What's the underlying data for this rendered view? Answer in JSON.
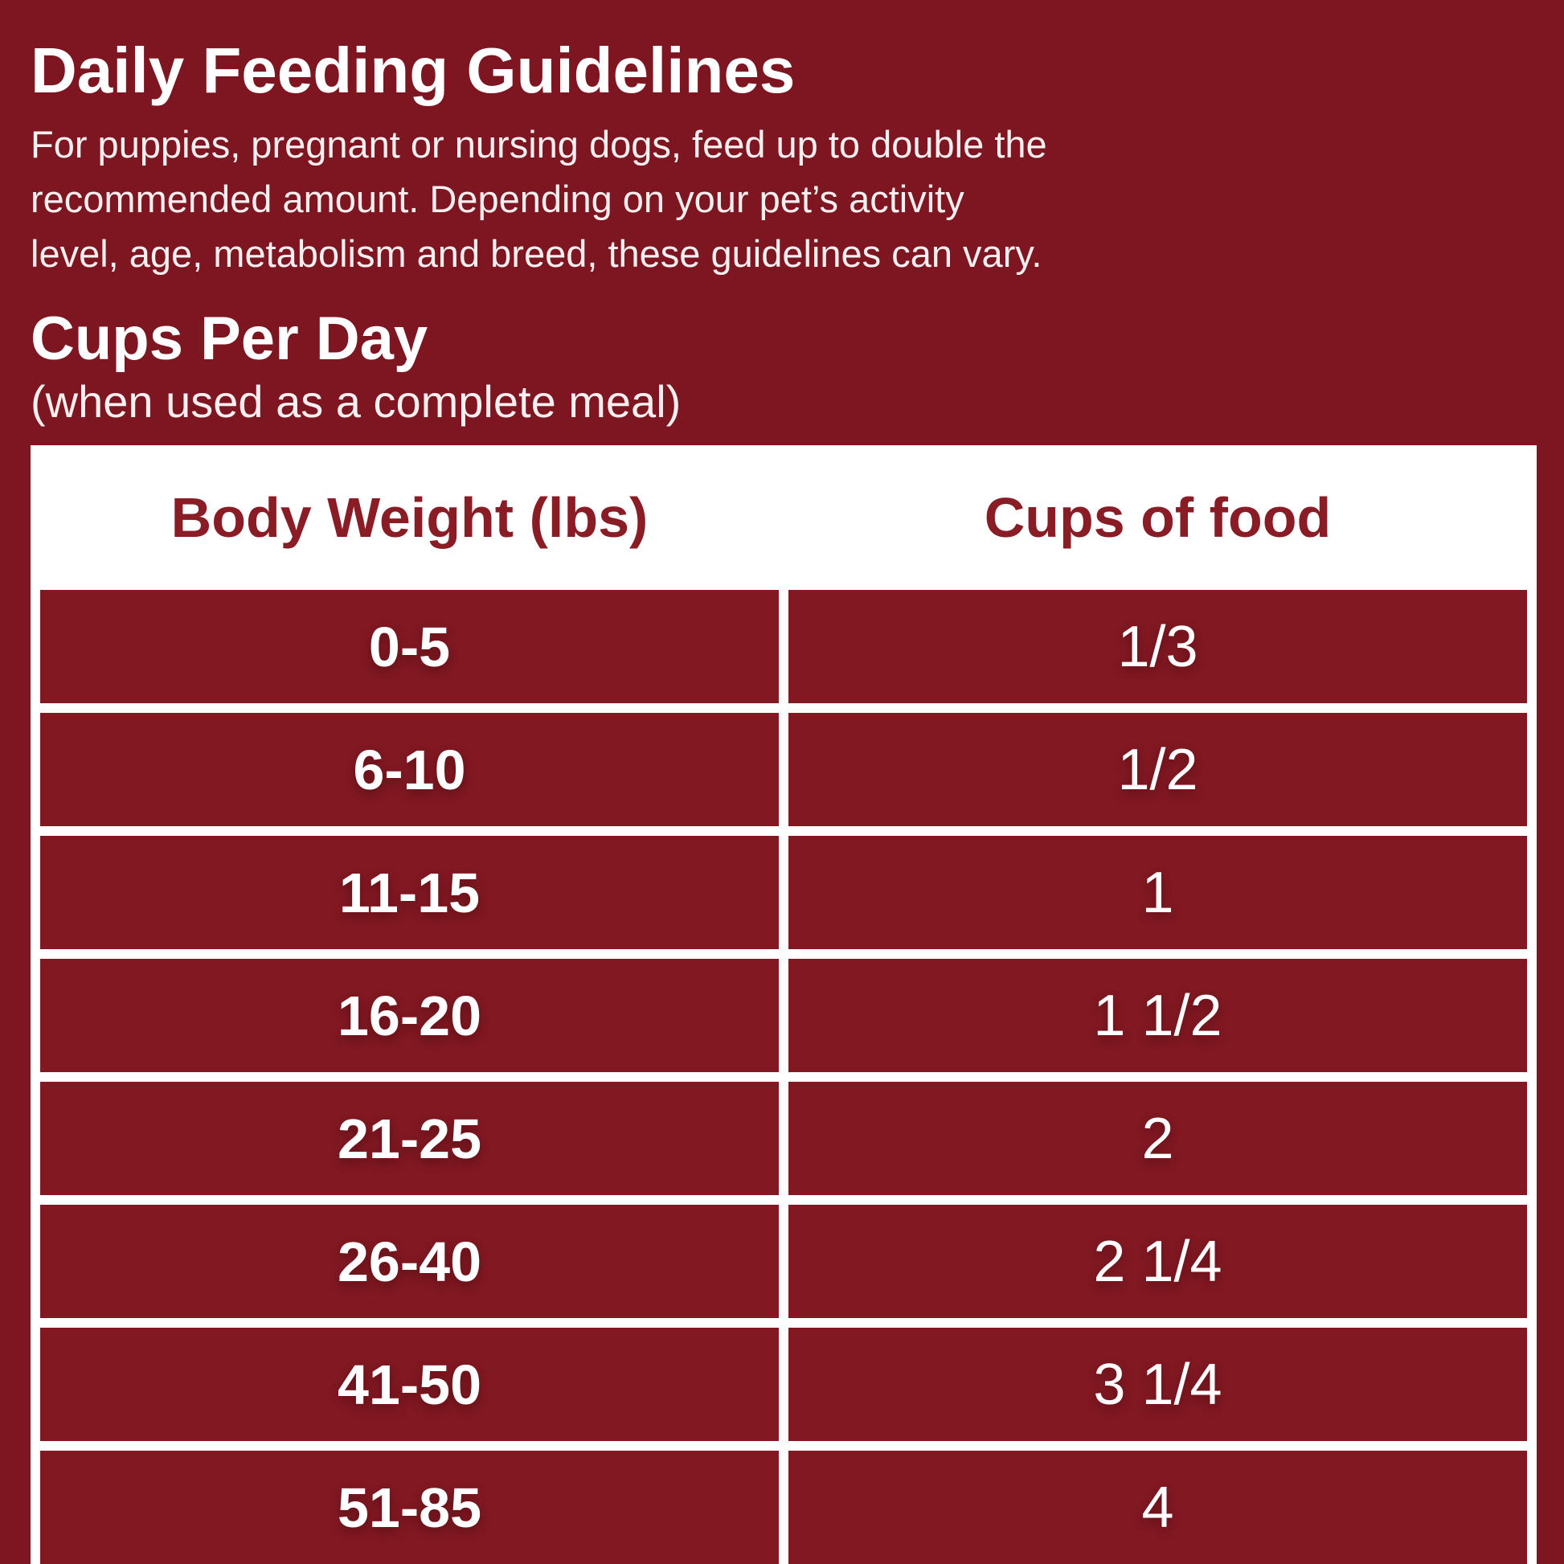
{
  "page": {
    "title": "Daily Feeding Guidelines",
    "intro_lines": [
      "For puppies, pregnant or nursing dogs, feed up to double the",
      "recommended amount. Depending on your pet’s activity",
      "level, age, metabolism and breed, these guidelines can vary."
    ],
    "subtitle": "Cups Per Day",
    "subtitle_note": "(when used as a complete meal)",
    "colors": {
      "background": "#7d1620",
      "cell_red": "#811822",
      "table_white": "#ffffff",
      "header_text_maroon": "#8a1c25",
      "body_text_white": "#ffffff"
    }
  },
  "table": {
    "columns": [
      "Body Weight (lbs)",
      "Cups of food"
    ],
    "rows": [
      {
        "weight": "0-5",
        "cups": "1/3"
      },
      {
        "weight": "6-10",
        "cups": "1/2"
      },
      {
        "weight": "11-15",
        "cups": "1"
      },
      {
        "weight": "16-20",
        "cups": "1 1/2"
      },
      {
        "weight": "21-25",
        "cups": "2"
      },
      {
        "weight": "26-40",
        "cups": "2 1/4"
      },
      {
        "weight": "41-50",
        "cups": "3 1/4"
      },
      {
        "weight": "51-85",
        "cups": "4"
      }
    ]
  }
}
